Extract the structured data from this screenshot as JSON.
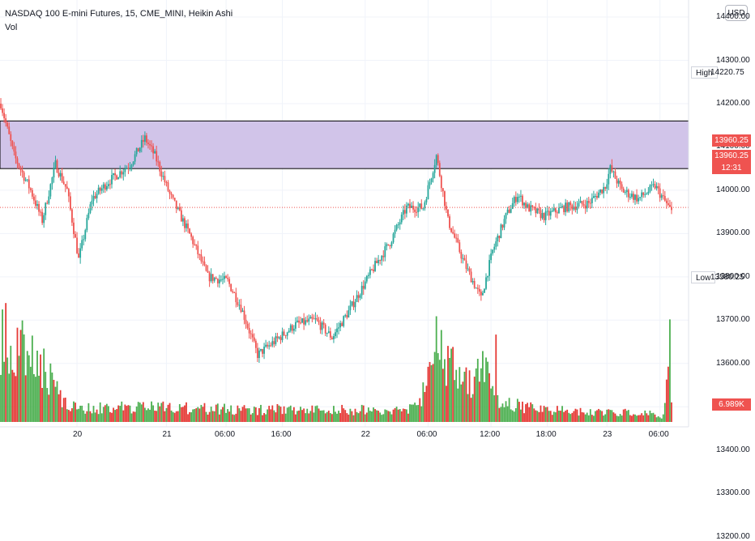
{
  "header": {
    "title": "NASDAQ 100 E-mini Futures, 15, CME_MINI, Heikin Ashi",
    "indicator": "Vol"
  },
  "currency_button": "USD",
  "colors": {
    "up": "#26a69a",
    "up_vol": "#4caf50",
    "down": "#ef5350",
    "down_vol": "#e53935",
    "zone_fill": "#d1c4e9",
    "zone_border": "#000000",
    "grid": "#f0f3fa",
    "text": "#131722",
    "price_line": "#ef5350"
  },
  "price_scale": {
    "ticks": [
      "14400.00",
      "14300.00",
      "14200.00",
      "14100.00",
      "14000.00",
      "13900.00",
      "13800.00",
      "13700.00",
      "13600.00",
      "13500.00",
      "13400.00",
      "13300.00",
      "13200.00"
    ]
  },
  "tags": {
    "high_label": "High",
    "high_value": "14220.75",
    "low_label": "Low",
    "low_value": "13580.25",
    "last_price_1": "13960.25",
    "last_price_2": "13960.25",
    "countdown": "12:31",
    "volume": "6.989K"
  },
  "time_axis": {
    "labels": [
      "20",
      "21",
      "06:00",
      "16:00",
      "22",
      "06:00",
      "12:00",
      "18:00",
      "23",
      "06:00"
    ]
  },
  "chart_data": {
    "type": "candlestick",
    "style": "Heikin Ashi",
    "symbol": "NASDAQ 100 E-mini Futures",
    "interval": "15",
    "exchange": "CME_MINI",
    "y_range": [
      13420,
      14430
    ],
    "zone": {
      "top": 14160,
      "bottom": 14050
    },
    "high": 14220.75,
    "low": 13580.25,
    "last_price": 13960.25,
    "volume_last": "6.989K",
    "path_keypoints": [
      [
        0,
        14200
      ],
      [
        8,
        14080
      ],
      [
        18,
        14000
      ],
      [
        25,
        13930
      ],
      [
        33,
        14060
      ],
      [
        40,
        14000
      ],
      [
        47,
        13840
      ],
      [
        55,
        13980
      ],
      [
        65,
        14020
      ],
      [
        78,
        14060
      ],
      [
        87,
        14120
      ],
      [
        93,
        14080
      ],
      [
        102,
        13990
      ],
      [
        115,
        13890
      ],
      [
        125,
        13800
      ],
      [
        137,
        13790
      ],
      [
        145,
        13730
      ],
      [
        155,
        13620
      ],
      [
        165,
        13650
      ],
      [
        178,
        13690
      ],
      [
        190,
        13700
      ],
      [
        200,
        13660
      ],
      [
        210,
        13720
      ],
      [
        225,
        13820
      ],
      [
        235,
        13880
      ],
      [
        245,
        13960
      ],
      [
        255,
        13960
      ],
      [
        263,
        14080
      ],
      [
        270,
        13930
      ],
      [
        280,
        13830
      ],
      [
        290,
        13750
      ],
      [
        297,
        13860
      ],
      [
        305,
        13940
      ],
      [
        312,
        13990
      ],
      [
        318,
        13960
      ],
      [
        328,
        13940
      ],
      [
        340,
        13960
      ],
      [
        355,
        13970
      ],
      [
        365,
        14010
      ],
      [
        368,
        14050
      ],
      [
        375,
        14000
      ],
      [
        385,
        13980
      ],
      [
        395,
        14010
      ],
      [
        405,
        13950
      ]
    ],
    "volume_keypoints": [
      [
        0,
        90
      ],
      [
        20,
        70
      ],
      [
        40,
        15
      ],
      [
        60,
        15
      ],
      [
        100,
        15
      ],
      [
        140,
        13
      ],
      [
        200,
        13
      ],
      [
        240,
        12
      ],
      [
        252,
        15
      ],
      [
        262,
        90
      ],
      [
        270,
        60
      ],
      [
        282,
        40
      ],
      [
        295,
        60
      ],
      [
        300,
        20
      ],
      [
        330,
        12
      ],
      [
        390,
        10
      ],
      [
        400,
        6
      ],
      [
        404,
        108
      ],
      [
        405,
        16
      ]
    ],
    "volume_max": 110
  }
}
